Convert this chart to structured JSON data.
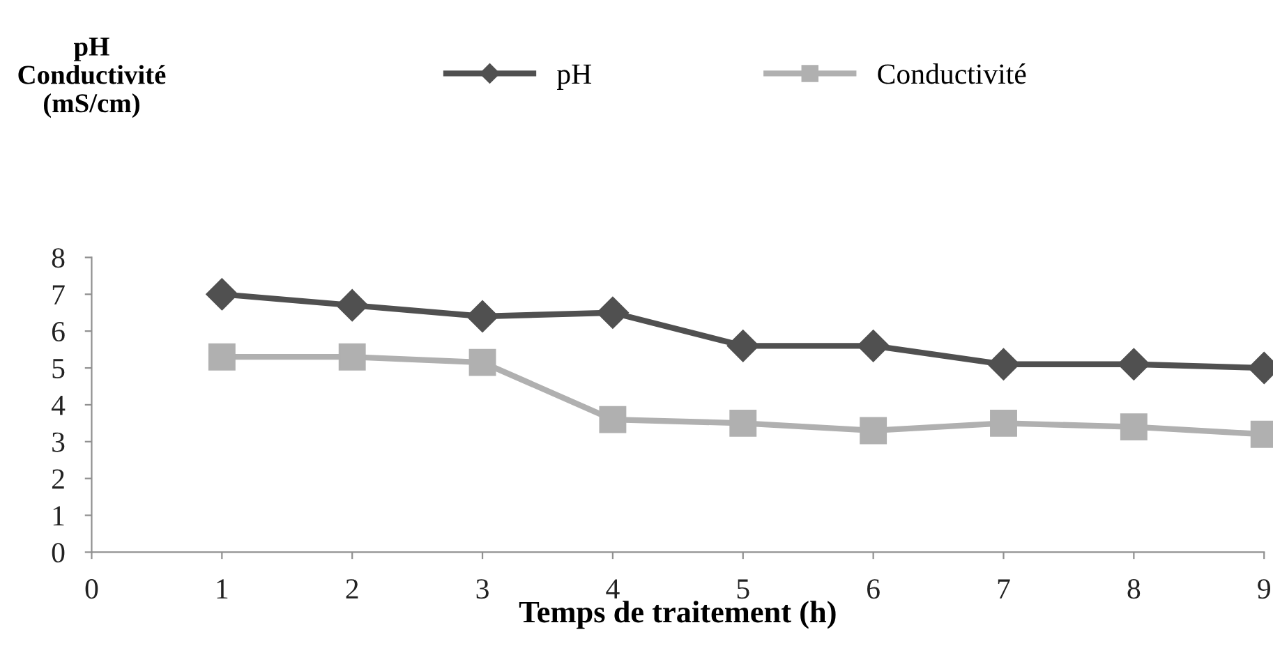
{
  "chart_data": {
    "type": "line",
    "xlabel": "Temps de traitement (h)",
    "ylabel": "pH\nConductivité\n(mS/cm)",
    "x": [
      1,
      2,
      3,
      4,
      5,
      6,
      7,
      8,
      9
    ],
    "series": [
      {
        "name": "pH",
        "color": "#505050",
        "marker": "diamond",
        "values": [
          7.0,
          6.7,
          6.4,
          6.5,
          5.6,
          5.6,
          5.1,
          5.1,
          5.0
        ]
      },
      {
        "name": "Conductivité",
        "color": "#b0b0b0",
        "marker": "square",
        "values": [
          5.3,
          5.3,
          5.15,
          3.6,
          3.5,
          3.3,
          3.5,
          3.4,
          3.2
        ]
      }
    ],
    "xlim": [
      0,
      9
    ],
    "xticks": [
      0,
      1,
      2,
      3,
      4,
      5,
      6,
      7,
      8,
      9
    ],
    "ylim": [
      0,
      8
    ],
    "yticks": [
      0,
      1,
      2,
      3,
      4,
      5,
      6,
      7,
      8
    ],
    "grid": false,
    "legend": "top",
    "line_style": "solid"
  }
}
